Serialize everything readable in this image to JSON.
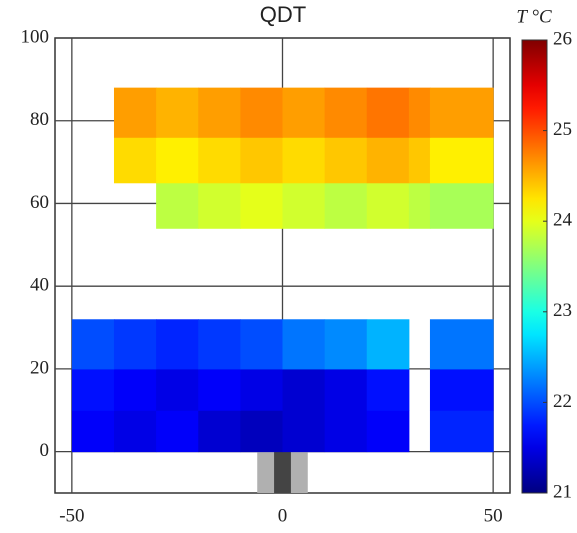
{
  "chart_data": {
    "type": "heatmap",
    "title": "QDT",
    "colorbar_label": "T °C",
    "x_bins": [
      -50,
      -40,
      -30,
      -20,
      -10,
      0,
      10,
      20,
      30,
      35,
      50
    ],
    "y_bins": [
      0,
      10,
      20,
      32,
      54,
      65,
      76,
      88
    ],
    "values": [
      [
        21.6,
        21.5,
        21.6,
        21.4,
        21.3,
        21.4,
        21.5,
        21.6,
        null,
        21.8
      ],
      [
        21.7,
        21.6,
        21.5,
        21.6,
        21.5,
        21.4,
        21.5,
        21.7,
        null,
        21.7
      ],
      [
        22.0,
        21.9,
        21.8,
        21.9,
        22.0,
        22.2,
        22.3,
        22.5,
        null,
        22.2
      ],
      [
        null,
        null,
        null,
        null,
        null,
        null,
        null,
        null,
        null,
        null
      ],
      [
        null,
        null,
        23.8,
        23.9,
        24.0,
        23.9,
        23.8,
        23.9,
        23.8,
        23.7
      ],
      [
        null,
        24.3,
        24.2,
        24.3,
        24.4,
        24.3,
        24.4,
        24.5,
        24.4,
        24.2
      ],
      [
        null,
        24.6,
        24.5,
        24.6,
        24.7,
        24.6,
        24.7,
        24.8,
        24.7,
        24.6
      ]
    ],
    "xlim": [
      -54,
      54
    ],
    "ylim": [
      -10,
      100
    ],
    "xticks": [
      -50,
      0,
      50
    ],
    "yticks": [
      0,
      20,
      40,
      60,
      80,
      100
    ],
    "clim": [
      21,
      26
    ],
    "cticks": [
      21,
      22,
      23,
      24,
      25,
      26
    ],
    "colormap": "jet",
    "grid": true
  }
}
